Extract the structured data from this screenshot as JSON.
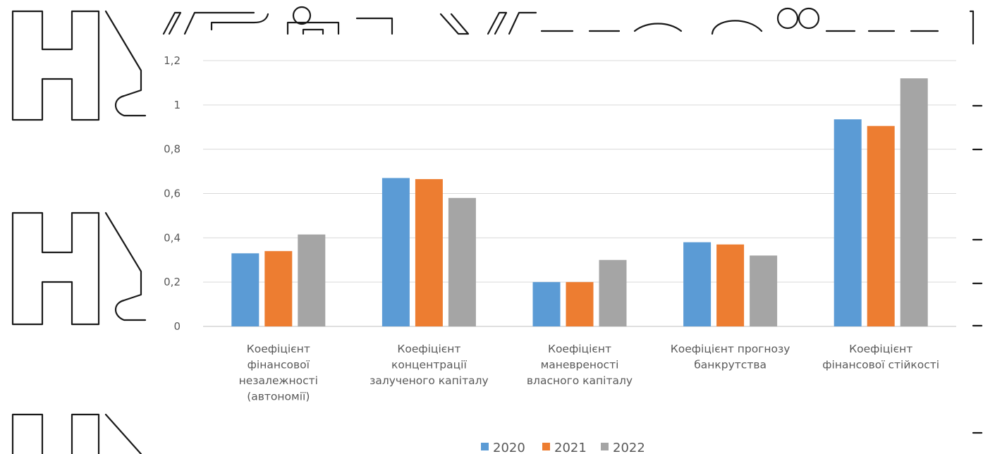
{
  "colors": {
    "series": [
      "#5b9bd5",
      "#ed7d31",
      "#a5a5a5"
    ],
    "grid": "#d9d9d9",
    "text": "#595959"
  },
  "chart_data": {
    "type": "bar",
    "title": "",
    "xlabel": "",
    "ylabel": "",
    "ylim": [
      0,
      1.2
    ],
    "yticks": [
      "0",
      "0,2",
      "0,4",
      "0,6",
      "0,8",
      "1",
      "1,2"
    ],
    "grid": true,
    "legend_position": "bottom",
    "categories": [
      [
        "Коефіцієнт",
        "фінансової",
        "незалежності",
        "(автономії)"
      ],
      [
        "Коефіцієнт",
        "концентрації",
        "залученого капіталу"
      ],
      [
        "Коефіцієнт",
        "маневреності",
        "власного капіталу"
      ],
      [
        "Коефіцієнт прогнозу",
        "банкрутства"
      ],
      [
        "Коефіцієнт",
        "фінансової стійкості"
      ]
    ],
    "series": [
      {
        "name": "2020",
        "values": [
          0.33,
          0.67,
          0.2,
          0.38,
          0.935
        ]
      },
      {
        "name": "2021",
        "values": [
          0.34,
          0.665,
          0.2,
          0.37,
          0.905
        ]
      },
      {
        "name": "2022",
        "values": [
          0.415,
          0.58,
          0.3,
          0.32,
          1.12
        ]
      }
    ]
  }
}
